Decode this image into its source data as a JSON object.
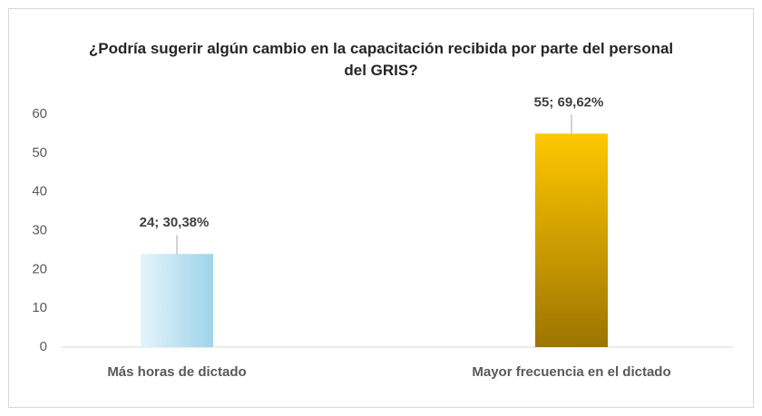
{
  "chart_data": {
    "type": "bar",
    "title": "¿Podría sugerir algún cambio en la capacitación recibida por parte del personal del GRIS?",
    "categories": [
      "Más horas de dictado",
      "Mayor frecuencia en el dictado"
    ],
    "values": [
      24,
      55
    ],
    "value_labels": [
      "24; 30,38%",
      "55; 69,62%"
    ],
    "colors": [
      [
        "#e4f4fb",
        "#9ed4ea"
      ],
      [
        "#ffc800",
        "#9c7400"
      ]
    ],
    "ylim": [
      0,
      60
    ],
    "yticks": [
      0,
      10,
      20,
      30,
      40,
      50,
      60
    ],
    "grid": false
  }
}
